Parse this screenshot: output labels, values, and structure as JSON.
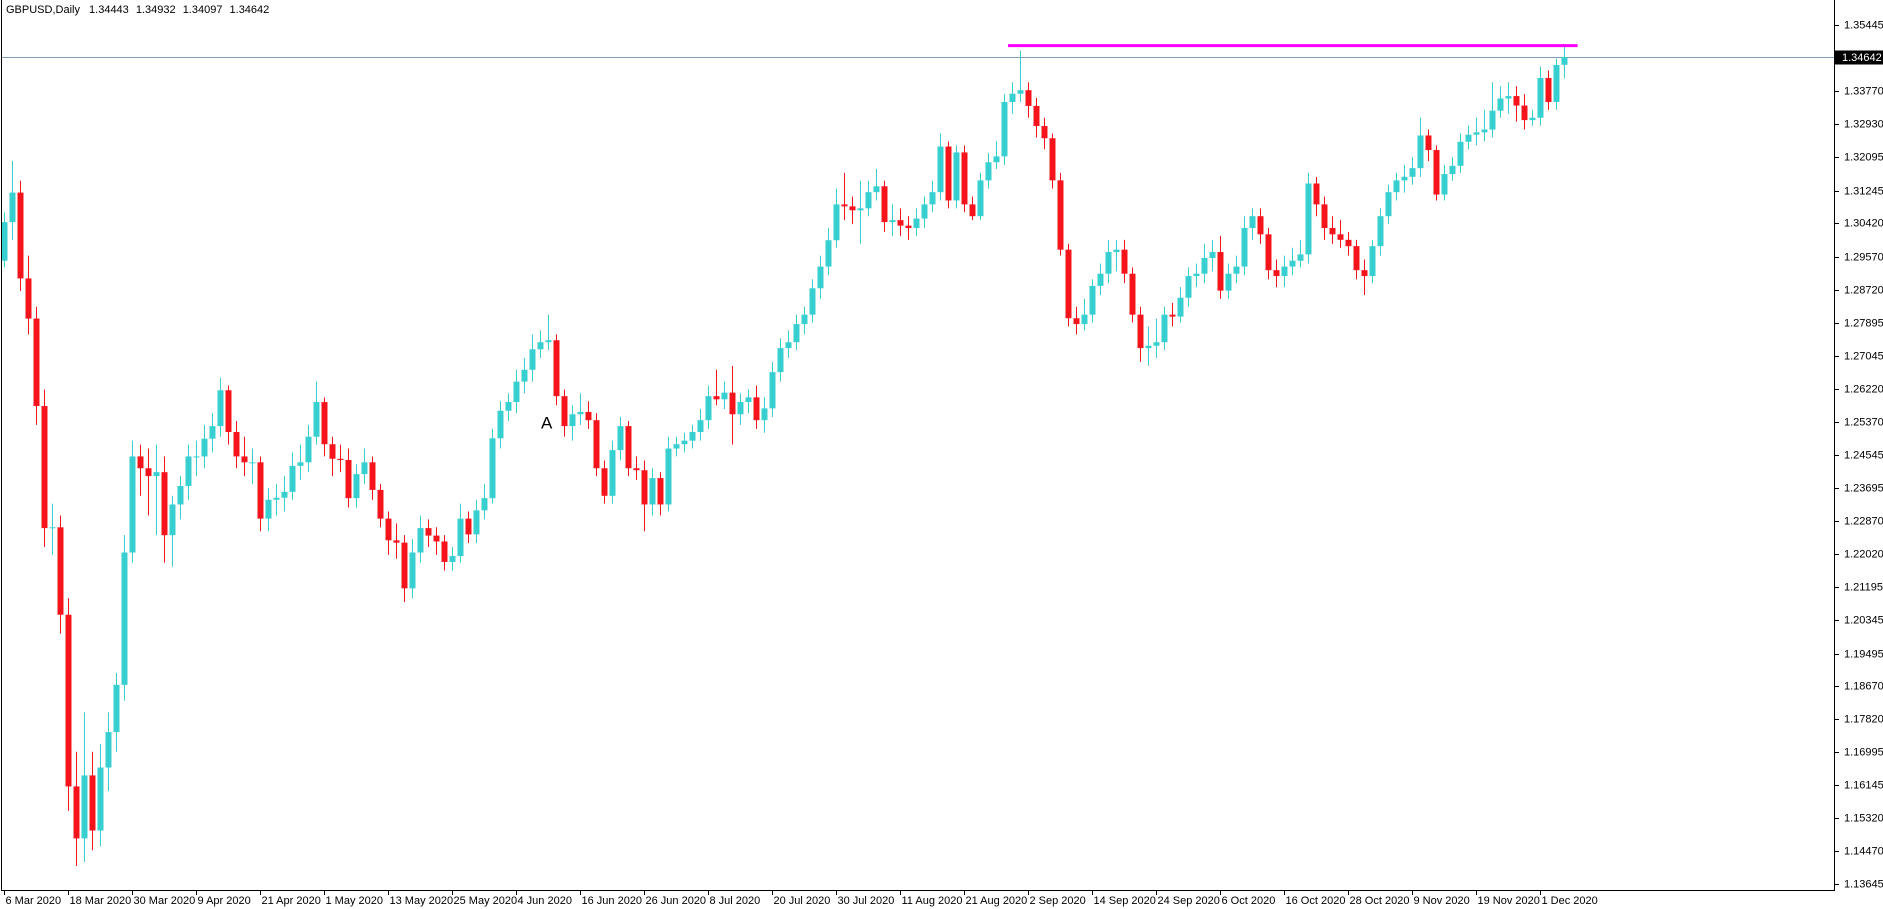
{
  "chart_data": {
    "type": "candlestick",
    "title": "GBPUSD,Daily",
    "up_color": "#38cfd1",
    "down_color": "#f5141b",
    "grid": false,
    "ylim": [
      1.1349,
      1.3609
    ],
    "yticks": [
      1.35445,
      {
        "value": 1.3377,
        "label": "1.33770"
      },
      {
        "value": 1.3293,
        "label": "1.32930"
      },
      1.32095,
      1.31245,
      {
        "value": 1.3042,
        "label": "1.30420"
      },
      {
        "value": 1.2957,
        "label": "1.29570"
      },
      {
        "value": 1.2872,
        "label": "1.28720"
      },
      1.27895,
      1.27045,
      {
        "value": 1.2622,
        "label": "1.26220"
      },
      {
        "value": 1.2537,
        "label": "1.25370"
      },
      1.24545,
      1.23695,
      {
        "value": 1.2287,
        "label": "1.22870"
      },
      {
        "value": 1.2202,
        "label": "1.22020"
      },
      1.21195,
      1.20345,
      1.19495,
      {
        "value": 1.1867,
        "label": "1.18670"
      },
      {
        "value": 1.1782,
        "label": "1.17820"
      },
      1.16995,
      1.16145,
      {
        "value": 1.1532,
        "label": "1.15320"
      },
      {
        "value": 1.1447,
        "label": "1.14470"
      },
      1.13645
    ],
    "level_line": {
      "value": 1.3493,
      "color": "#ff00ff"
    },
    "price_line_color": "#7f9db9",
    "annotations": [
      {
        "text": "A"
      }
    ],
    "categories": [
      "6 Mar 2020",
      null,
      null,
      null,
      null,
      null,
      null,
      null,
      "18 Mar 2020",
      null,
      null,
      null,
      null,
      null,
      null,
      null,
      "30 Mar 2020",
      null,
      null,
      null,
      null,
      null,
      null,
      null,
      "9 Apr 2020",
      null,
      null,
      null,
      null,
      null,
      null,
      null,
      "21 Apr 2020",
      null,
      null,
      null,
      null,
      null,
      null,
      null,
      "1 May 2020",
      null,
      null,
      null,
      null,
      null,
      null,
      null,
      "13 May 2020",
      null,
      null,
      null,
      null,
      null,
      null,
      null,
      "25 May 2020",
      null,
      null,
      null,
      null,
      null,
      null,
      null,
      "4 Jun 2020",
      null,
      null,
      null,
      null,
      null,
      null,
      null,
      "16 Jun 2020",
      null,
      null,
      null,
      null,
      null,
      null,
      null,
      "26 Jun 2020",
      null,
      null,
      null,
      null,
      null,
      null,
      null,
      "8 Jul 2020",
      null,
      null,
      null,
      null,
      null,
      null,
      null,
      "20 Jul 2020",
      null,
      null,
      null,
      null,
      null,
      null,
      null,
      "30 Jul 2020",
      null,
      null,
      null,
      null,
      null,
      null,
      null,
      "11 Aug 2020",
      null,
      null,
      null,
      null,
      null,
      null,
      null,
      "21 Aug 2020",
      null,
      null,
      null,
      null,
      null,
      null,
      null,
      "2 Sep 2020",
      null,
      null,
      null,
      null,
      null,
      null,
      null,
      "14 Sep 2020",
      null,
      null,
      null,
      null,
      null,
      null,
      null,
      "24 Sep 2020",
      null,
      null,
      null,
      null,
      null,
      null,
      null,
      "6 Oct 2020",
      null,
      null,
      null,
      null,
      null,
      null,
      null,
      "16 Oct 2020",
      null,
      null,
      null,
      null,
      null,
      null,
      null,
      "28 Oct 2020",
      null,
      null,
      null,
      null,
      null,
      null,
      null,
      "9 Nov 2020",
      null,
      null,
      null,
      null,
      null,
      null,
      null,
      "19 Nov 2020",
      null,
      null,
      null,
      null,
      null,
      null,
      null,
      "1 Dec 2020",
      null,
      null,
      null
    ],
    "ohlc": [
      [
        1.2947,
        1.307,
        1.293,
        1.3045
      ],
      [
        1.3045,
        1.32,
        1.3,
        1.312
      ],
      [
        1.312,
        1.315,
        1.287,
        1.2902
      ],
      [
        1.2902,
        1.296,
        1.276,
        1.28
      ],
      [
        1.28,
        1.283,
        1.253,
        1.2578
      ],
      [
        1.2578,
        1.262,
        1.222,
        1.2268
      ],
      [
        1.2268,
        1.233,
        1.22,
        1.227
      ],
      [
        1.227,
        1.23,
        1.2,
        1.2048
      ],
      [
        1.2048,
        1.209,
        1.155,
        1.1612
      ],
      [
        1.1612,
        1.17,
        1.141,
        1.148
      ],
      [
        1.148,
        1.18,
        1.142,
        1.164
      ],
      [
        1.164,
        1.17,
        1.145,
        1.15
      ],
      [
        1.15,
        1.172,
        1.146,
        1.166
      ],
      [
        1.166,
        1.18,
        1.16,
        1.175
      ],
      [
        1.175,
        1.19,
        1.17,
        1.187
      ],
      [
        1.187,
        1.225,
        1.183,
        1.2206
      ],
      [
        1.2206,
        1.249,
        1.218,
        1.245
      ],
      [
        1.245,
        1.248,
        1.235,
        1.242
      ],
      [
        1.242,
        1.247,
        1.23,
        1.24
      ],
      [
        1.24,
        1.248,
        1.225,
        1.241
      ],
      [
        1.241,
        1.245,
        1.218,
        1.225
      ],
      [
        1.225,
        1.235,
        1.217,
        1.2328
      ],
      [
        1.2328,
        1.24,
        1.229,
        1.2375
      ],
      [
        1.2375,
        1.248,
        1.234,
        1.245
      ],
      [
        1.245,
        1.249,
        1.24,
        1.245
      ],
      [
        1.245,
        1.253,
        1.242,
        1.2495
      ],
      [
        1.2495,
        1.256,
        1.246,
        1.2527
      ],
      [
        1.2527,
        1.265,
        1.25,
        1.2618
      ],
      [
        1.2618,
        1.263,
        1.248,
        1.2512
      ],
      [
        1.2512,
        1.254,
        1.242,
        1.245
      ],
      [
        1.245,
        1.25,
        1.24,
        1.2435
      ],
      [
        1.2435,
        1.247,
        1.238,
        1.2435
      ],
      [
        1.2435,
        1.245,
        1.226,
        1.2292
      ],
      [
        1.2292,
        1.237,
        1.226,
        1.234
      ],
      [
        1.234,
        1.238,
        1.23,
        1.2345
      ],
      [
        1.2345,
        1.24,
        1.231,
        1.236
      ],
      [
        1.236,
        1.246,
        1.234,
        1.2426
      ],
      [
        1.2426,
        1.248,
        1.239,
        1.2435
      ],
      [
        1.2435,
        1.253,
        1.241,
        1.25
      ],
      [
        1.25,
        1.264,
        1.248,
        1.2588
      ],
      [
        1.2588,
        1.26,
        1.245,
        1.2481
      ],
      [
        1.2481,
        1.25,
        1.24,
        1.2444
      ],
      [
        1.2444,
        1.248,
        1.241,
        1.2441
      ],
      [
        1.2441,
        1.247,
        1.232,
        1.2344
      ],
      [
        1.2344,
        1.243,
        1.232,
        1.2405
      ],
      [
        1.2405,
        1.247,
        1.238,
        1.2435
      ],
      [
        1.2435,
        1.245,
        1.234,
        1.2365
      ],
      [
        1.2365,
        1.238,
        1.227,
        1.2292
      ],
      [
        1.2292,
        1.231,
        1.22,
        1.2237
      ],
      [
        1.2237,
        1.228,
        1.219,
        1.2231
      ],
      [
        1.2231,
        1.225,
        1.208,
        1.2115
      ],
      [
        1.2115,
        1.224,
        1.209,
        1.2206
      ],
      [
        1.2206,
        1.23,
        1.218,
        1.2268
      ],
      [
        1.2268,
        1.229,
        1.222,
        1.2249
      ],
      [
        1.2249,
        1.227,
        1.22,
        1.2234
      ],
      [
        1.2234,
        1.225,
        1.216,
        1.2182
      ],
      [
        1.2182,
        1.222,
        1.216,
        1.2197
      ],
      [
        1.2197,
        1.233,
        1.218,
        1.2292
      ],
      [
        1.2292,
        1.231,
        1.223,
        1.2252
      ],
      [
        1.2252,
        1.234,
        1.223,
        1.2313
      ],
      [
        1.2313,
        1.238,
        1.229,
        1.2344
      ],
      [
        1.2344,
        1.252,
        1.233,
        1.2496
      ],
      [
        1.2496,
        1.259,
        1.247,
        1.2566
      ],
      [
        1.2566,
        1.261,
        1.254,
        1.2588
      ],
      [
        1.2588,
        1.267,
        1.256,
        1.264
      ],
      [
        1.264,
        1.27,
        1.261,
        1.267
      ],
      [
        1.267,
        1.276,
        1.264,
        1.2722
      ],
      [
        1.2722,
        1.277,
        1.27,
        1.274
      ],
      [
        1.274,
        1.281,
        1.272,
        1.2745
      ],
      [
        1.2745,
        1.276,
        1.258,
        1.2603
      ],
      [
        1.2603,
        1.262,
        1.25,
        1.2527
      ],
      [
        1.2527,
        1.258,
        1.249,
        1.2557
      ],
      [
        1.2557,
        1.261,
        1.253,
        1.2563
      ],
      [
        1.2563,
        1.259,
        1.252,
        1.2542
      ],
      [
        1.2542,
        1.256,
        1.24,
        1.242
      ],
      [
        1.242,
        1.244,
        1.233,
        1.235
      ],
      [
        1.235,
        1.249,
        1.233,
        1.2466
      ],
      [
        1.2466,
        1.255,
        1.244,
        1.2527
      ],
      [
        1.2527,
        1.254,
        1.24,
        1.242
      ],
      [
        1.242,
        1.245,
        1.239,
        1.2415
      ],
      [
        1.2415,
        1.244,
        1.226,
        1.2328
      ],
      [
        1.2328,
        1.242,
        1.23,
        1.2395
      ],
      [
        1.2395,
        1.241,
        1.23,
        1.2328
      ],
      [
        1.2328,
        1.25,
        1.231,
        1.247
      ],
      [
        1.247,
        1.25,
        1.245,
        1.2481
      ],
      [
        1.2481,
        1.251,
        1.246,
        1.249
      ],
      [
        1.249,
        1.253,
        1.247,
        1.2512
      ],
      [
        1.2512,
        1.257,
        1.249,
        1.2542
      ],
      [
        1.2542,
        1.263,
        1.252,
        1.2603
      ],
      [
        1.2603,
        1.267,
        1.258,
        1.2595
      ],
      [
        1.2595,
        1.264,
        1.257,
        1.2612
      ],
      [
        1.2612,
        1.268,
        1.248,
        1.2557
      ],
      [
        1.2557,
        1.261,
        1.253,
        1.2588
      ],
      [
        1.2588,
        1.262,
        1.256,
        1.26
      ],
      [
        1.26,
        1.263,
        1.252,
        1.2542
      ],
      [
        1.2542,
        1.26,
        1.251,
        1.2572
      ],
      [
        1.2572,
        1.269,
        1.255,
        1.2664
      ],
      [
        1.2664,
        1.275,
        1.264,
        1.2725
      ],
      [
        1.2725,
        1.277,
        1.27,
        1.274
      ],
      [
        1.274,
        1.281,
        1.272,
        1.2786
      ],
      [
        1.2786,
        1.283,
        1.276,
        1.281
      ],
      [
        1.281,
        1.29,
        1.279,
        1.2877
      ],
      [
        1.2877,
        1.296,
        1.285,
        1.2932
      ],
      [
        1.2932,
        1.303,
        1.291,
        1.2999
      ],
      [
        1.2999,
        1.313,
        1.298,
        1.309
      ],
      [
        1.309,
        1.317,
        1.305,
        1.3085
      ],
      [
        1.3085,
        1.311,
        1.304,
        1.3075
      ],
      [
        1.3075,
        1.315,
        1.299,
        1.308
      ],
      [
        1.308,
        1.315,
        1.306,
        1.3121
      ],
      [
        1.3121,
        1.318,
        1.31,
        1.3136
      ],
      [
        1.3136,
        1.315,
        1.302,
        1.3045
      ],
      [
        1.3045,
        1.309,
        1.301,
        1.305
      ],
      [
        1.305,
        1.308,
        1.301,
        1.3036
      ],
      [
        1.3036,
        1.306,
        1.3,
        1.303
      ],
      [
        1.303,
        1.308,
        1.301,
        1.3054
      ],
      [
        1.3054,
        1.311,
        1.303,
        1.309
      ],
      [
        1.309,
        1.315,
        1.307,
        1.3121
      ],
      [
        1.3121,
        1.327,
        1.31,
        1.3237
      ],
      [
        1.3237,
        1.325,
        1.308,
        1.31
      ],
      [
        1.31,
        1.324,
        1.308,
        1.3222
      ],
      [
        1.3222,
        1.324,
        1.307,
        1.309
      ],
      [
        1.309,
        1.311,
        1.305,
        1.306
      ],
      [
        1.306,
        1.317,
        1.305,
        1.3151
      ],
      [
        1.3151,
        1.322,
        1.313,
        1.3197
      ],
      [
        1.3197,
        1.325,
        1.318,
        1.3212
      ],
      [
        1.3212,
        1.337,
        1.319,
        1.335
      ],
      [
        1.335,
        1.34,
        1.332,
        1.3371
      ],
      [
        1.3371,
        1.348,
        1.335,
        1.338
      ],
      [
        1.338,
        1.34,
        1.331,
        1.334
      ],
      [
        1.334,
        1.336,
        1.326,
        1.3289
      ],
      [
        1.3289,
        1.331,
        1.323,
        1.3258
      ],
      [
        1.3258,
        1.327,
        1.313,
        1.3151
      ],
      [
        1.3151,
        1.317,
        1.296,
        1.2975
      ],
      [
        1.2975,
        1.299,
        1.278,
        1.2801
      ],
      [
        1.2801,
        1.283,
        1.276,
        1.2786
      ],
      [
        1.2786,
        1.285,
        1.277,
        1.281
      ],
      [
        1.281,
        1.29,
        1.279,
        1.2883
      ],
      [
        1.2883,
        1.294,
        1.286,
        1.2914
      ],
      [
        1.2914,
        1.3,
        1.289,
        1.2969
      ],
      [
        1.2969,
        1.3,
        1.292,
        1.2975
      ],
      [
        1.2975,
        1.3,
        1.289,
        1.2914
      ],
      [
        1.2914,
        1.293,
        1.279,
        1.281
      ],
      [
        1.281,
        1.283,
        1.269,
        1.2725
      ],
      [
        1.2725,
        1.278,
        1.268,
        1.2731
      ],
      [
        1.2731,
        1.28,
        1.27,
        1.274
      ],
      [
        1.274,
        1.283,
        1.272,
        1.281
      ],
      [
        1.281,
        1.284,
        1.278,
        1.2805
      ],
      [
        1.2805,
        1.288,
        1.279,
        1.2853
      ],
      [
        1.2853,
        1.293,
        1.283,
        1.2908
      ],
      [
        1.2908,
        1.294,
        1.288,
        1.2914
      ],
      [
        1.2914,
        1.299,
        1.289,
        1.2954
      ],
      [
        1.2954,
        1.3,
        1.292,
        1.2969
      ],
      [
        1.2969,
        1.301,
        1.285,
        1.2871
      ],
      [
        1.2871,
        1.294,
        1.285,
        1.2914
      ],
      [
        1.2914,
        1.296,
        1.289,
        1.2932
      ],
      [
        1.2932,
        1.306,
        1.291,
        1.303
      ],
      [
        1.303,
        1.308,
        1.3,
        1.306
      ],
      [
        1.306,
        1.308,
        1.299,
        1.3014
      ],
      [
        1.3014,
        1.303,
        1.29,
        1.2923
      ],
      [
        1.2923,
        1.295,
        1.288,
        1.2908
      ],
      [
        1.2908,
        1.296,
        1.288,
        1.2932
      ],
      [
        1.2932,
        1.298,
        1.291,
        1.2947
      ],
      [
        1.2947,
        1.3,
        1.293,
        1.2963
      ],
      [
        1.2963,
        1.317,
        1.294,
        1.3143
      ],
      [
        1.3143,
        1.316,
        1.306,
        1.309
      ],
      [
        1.309,
        1.311,
        1.3,
        1.303
      ],
      [
        1.303,
        1.306,
        1.299,
        1.3014
      ],
      [
        1.3014,
        1.305,
        1.298,
        1.3
      ],
      [
        1.3,
        1.302,
        1.296,
        1.2984
      ],
      [
        1.2984,
        1.3,
        1.29,
        1.2923
      ],
      [
        1.2923,
        1.295,
        1.286,
        1.2908
      ],
      [
        1.2908,
        1.3,
        1.289,
        1.2984
      ],
      [
        1.2984,
        1.308,
        1.296,
        1.306
      ],
      [
        1.306,
        1.314,
        1.304,
        1.3121
      ],
      [
        1.3121,
        1.317,
        1.31,
        1.3151
      ],
      [
        1.3151,
        1.319,
        1.312,
        1.316
      ],
      [
        1.316,
        1.321,
        1.314,
        1.3182
      ],
      [
        1.3182,
        1.331,
        1.316,
        1.3265
      ],
      [
        1.3265,
        1.328,
        1.32,
        1.3228
      ],
      [
        1.3228,
        1.324,
        1.31,
        1.3115
      ],
      [
        1.3115,
        1.319,
        1.31,
        1.3167
      ],
      [
        1.3167,
        1.321,
        1.315,
        1.3188
      ],
      [
        1.3188,
        1.327,
        1.317,
        1.3249
      ],
      [
        1.3249,
        1.329,
        1.323,
        1.3267
      ],
      [
        1.3267,
        1.331,
        1.324,
        1.3273
      ],
      [
        1.3273,
        1.333,
        1.325,
        1.328
      ],
      [
        1.328,
        1.34,
        1.326,
        1.3328
      ],
      [
        1.3328,
        1.339,
        1.331,
        1.3359
      ],
      [
        1.3359,
        1.34,
        1.332,
        1.3365
      ],
      [
        1.3365,
        1.339,
        1.33,
        1.3341
      ],
      [
        1.3341,
        1.337,
        1.328,
        1.3304
      ],
      [
        1.3304,
        1.333,
        1.329,
        1.331
      ],
      [
        1.331,
        1.344,
        1.329,
        1.3411
      ],
      [
        1.3411,
        1.343,
        1.333,
        1.335
      ],
      [
        1.335,
        1.346,
        1.333,
        1.3444
      ],
      [
        1.34443,
        1.34932,
        1.34097,
        1.34642
      ]
    ]
  }
}
